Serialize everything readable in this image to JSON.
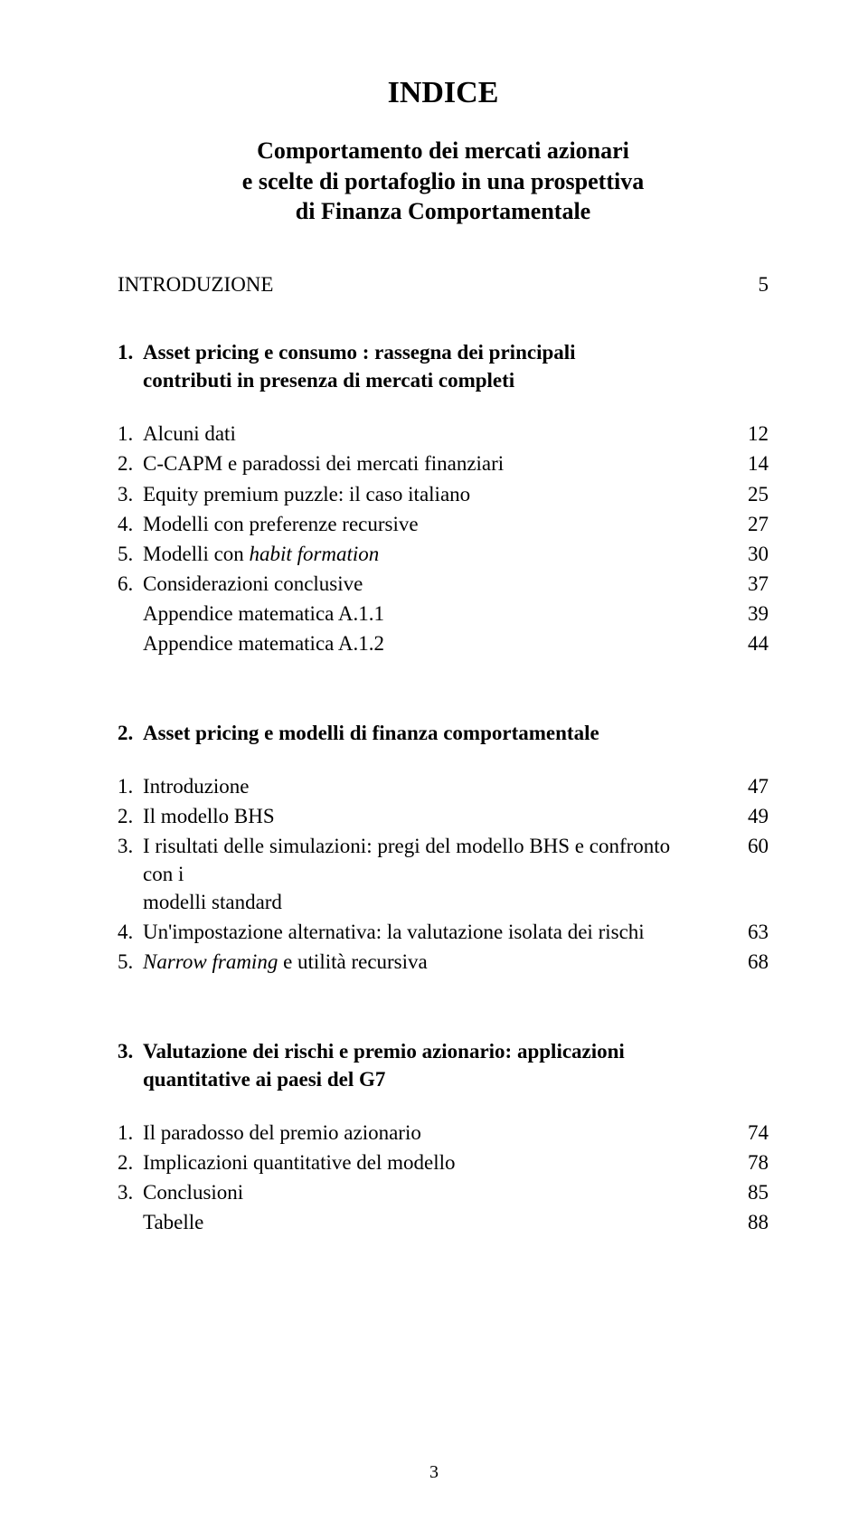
{
  "title": "INDICE",
  "subtitle_line1": "Comportamento dei mercati azionari",
  "subtitle_line2": "e scelte di portafoglio in una prospettiva",
  "subtitle_line3": "di Finanza Comportamentale",
  "intro_label": "INTRODUZIONE",
  "intro_page": "5",
  "section1": {
    "num": "1.",
    "heading_l1": "Asset pricing e consumo : rassegna dei principali",
    "heading_l2": "contributi in presenza di mercati completi",
    "items": [
      {
        "num": "1.",
        "txt": "Alcuni dati",
        "page": "12",
        "italic": false
      },
      {
        "num": "2.",
        "txt": "C-CAPM e paradossi dei mercati finanziari",
        "page": "14",
        "italic": false
      },
      {
        "num": "3.",
        "txt": "Equity premium puzzle: il caso italiano",
        "page": "25",
        "italic": false
      },
      {
        "num": "4.",
        "txt": "Modelli con preferenze recursive",
        "page": "27",
        "italic": false
      },
      {
        "num": "5.",
        "txt_pre": "Modelli con ",
        "txt_it": "habit formation",
        "page": "30",
        "italic": "mixed"
      },
      {
        "num": "6.",
        "txt": "Considerazioni conclusive",
        "page": "37",
        "italic": false
      },
      {
        "num": "",
        "txt": "Appendice matematica A.1.1",
        "page": "39",
        "italic": false
      },
      {
        "num": "",
        "txt": "Appendice matematica A.1.2",
        "page": "44",
        "italic": false
      }
    ]
  },
  "section2": {
    "num": "2.",
    "heading": "Asset pricing e modelli di finanza comportamentale",
    "items": [
      {
        "num": "1.",
        "txt": "Introduzione",
        "page": "47",
        "italic": false
      },
      {
        "num": "2.",
        "txt": "Il modello BHS",
        "page": "49",
        "italic": false
      },
      {
        "num": "3.",
        "txt_l1": "I risultati delle simulazioni: pregi del modello BHS e confronto con i",
        "txt_l2": "modelli standard",
        "page": "60",
        "italic": false,
        "multi": true
      },
      {
        "num": "4.",
        "txt": "Un'impostazione alternativa: la valutazione isolata dei rischi",
        "page": "63",
        "italic": false
      },
      {
        "num": "5.",
        "txt_it": "Narrow framing",
        "txt_post": " e utilità recursiva",
        "page": "68",
        "italic": "mixed2"
      }
    ]
  },
  "section3": {
    "num": "3.",
    "heading_l1": "Valutazione dei rischi e premio azionario: applicazioni",
    "heading_l2": "quantitative ai paesi del G7",
    "items": [
      {
        "num": "1.",
        "txt": "Il paradosso del premio azionario",
        "page": "74",
        "italic": false
      },
      {
        "num": "2.",
        "txt": "Implicazioni quantitative del modello",
        "page": "78",
        "italic": false
      },
      {
        "num": "3.",
        "txt": "Conclusioni",
        "page": "85",
        "italic": false
      },
      {
        "num": "",
        "txt": "Tabelle",
        "page": "88",
        "italic": false
      }
    ]
  },
  "page_number": "3"
}
